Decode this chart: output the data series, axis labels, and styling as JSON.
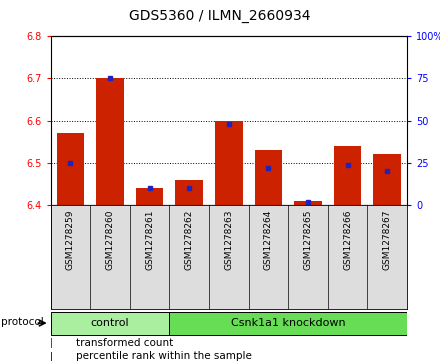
{
  "title": "GDS5360 / ILMN_2660934",
  "samples": [
    "GSM1278259",
    "GSM1278260",
    "GSM1278261",
    "GSM1278262",
    "GSM1278263",
    "GSM1278264",
    "GSM1278265",
    "GSM1278266",
    "GSM1278267"
  ],
  "transformed_counts": [
    6.57,
    6.7,
    6.44,
    6.46,
    6.6,
    6.53,
    6.41,
    6.54,
    6.52
  ],
  "percentile_ranks": [
    25,
    75,
    10,
    10,
    48,
    22,
    2,
    24,
    20
  ],
  "ylim_left": [
    6.4,
    6.8
  ],
  "ylim_right": [
    0,
    100
  ],
  "yticks_left": [
    6.4,
    6.5,
    6.6,
    6.7,
    6.8
  ],
  "yticks_right": [
    0,
    25,
    50,
    75,
    100
  ],
  "bar_color": "#CC2200",
  "dot_color": "#2222BB",
  "groups": [
    {
      "label": "control",
      "indices": [
        0,
        1,
        2
      ],
      "color": "#AAEEA0"
    },
    {
      "label": "Csnk1a1 knockdown",
      "indices": [
        3,
        4,
        5,
        6,
        7,
        8
      ],
      "color": "#66DD55"
    }
  ],
  "protocol_label": "protocol",
  "legend_items": [
    {
      "label": "transformed count",
      "color": "#CC2200"
    },
    {
      "label": "percentile rank within the sample",
      "color": "#2222BB"
    }
  ],
  "bg_color": "#DDDDDD",
  "plot_bg": "white",
  "title_fontsize": 10,
  "tick_fontsize": 7,
  "label_fontsize": 6.5,
  "group_fontsize": 8,
  "legend_fontsize": 7.5
}
